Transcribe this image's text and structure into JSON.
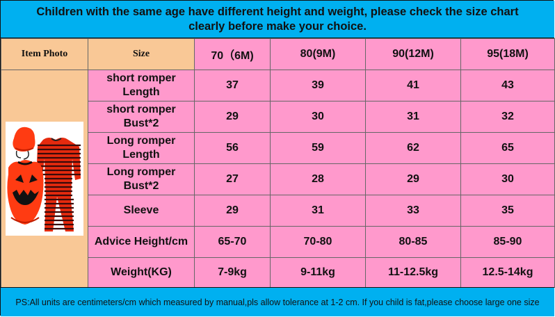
{
  "banner": {
    "text": "Children with the same age have different height and weight, please check the size chart clearly before make your choice."
  },
  "table": {
    "item_photo_label": "Item Photo",
    "size_label": "Size",
    "sizes": [
      "70（6M)",
      "80(9M)",
      "90(12M)",
      "95(18M)"
    ],
    "rows": [
      {
        "label_line1": "short romper",
        "label_line2": "Length",
        "values": [
          "37",
          "39",
          "41",
          "43"
        ]
      },
      {
        "label_line1": "short romper",
        "label_line2": "Bust*2",
        "values": [
          "29",
          "30",
          "31",
          "32"
        ]
      },
      {
        "label_line1": "Long romper",
        "label_line2": "Length",
        "values": [
          "56",
          "59",
          "62",
          "65"
        ]
      },
      {
        "label_line1": "Long romper",
        "label_line2": "Bust*2",
        "values": [
          "27",
          "28",
          "29",
          "30"
        ]
      },
      {
        "label_line1": "Sleeve",
        "label_line2": "",
        "values": [
          "29",
          "31",
          "33",
          "35"
        ]
      },
      {
        "label_line1": "Advice Height/cm",
        "label_line2": "",
        "values": [
          "65-70",
          "70-80",
          "80-85",
          "85-90"
        ]
      },
      {
        "label_line1": "Weight(KG)",
        "label_line2": "",
        "values": [
          "7-9kg",
          "9-11kg",
          "11-12.5kg",
          "12.5-14kg"
        ]
      }
    ]
  },
  "footer": {
    "text": "PS:All units are centimeters/cm which measured by manual,pls allow tolerance at 1-2 cm. If you child is fat,please choose large one size"
  },
  "colors": {
    "banner_bg": "#00b0f0",
    "header_peach": "#f9c896",
    "cell_pink": "#ff99cc",
    "pumpkin_orange": "#ff3b12",
    "stripe_dark": "#3a0a0a"
  },
  "product_image": {
    "icon": "pumpkin-romper-set-image"
  }
}
